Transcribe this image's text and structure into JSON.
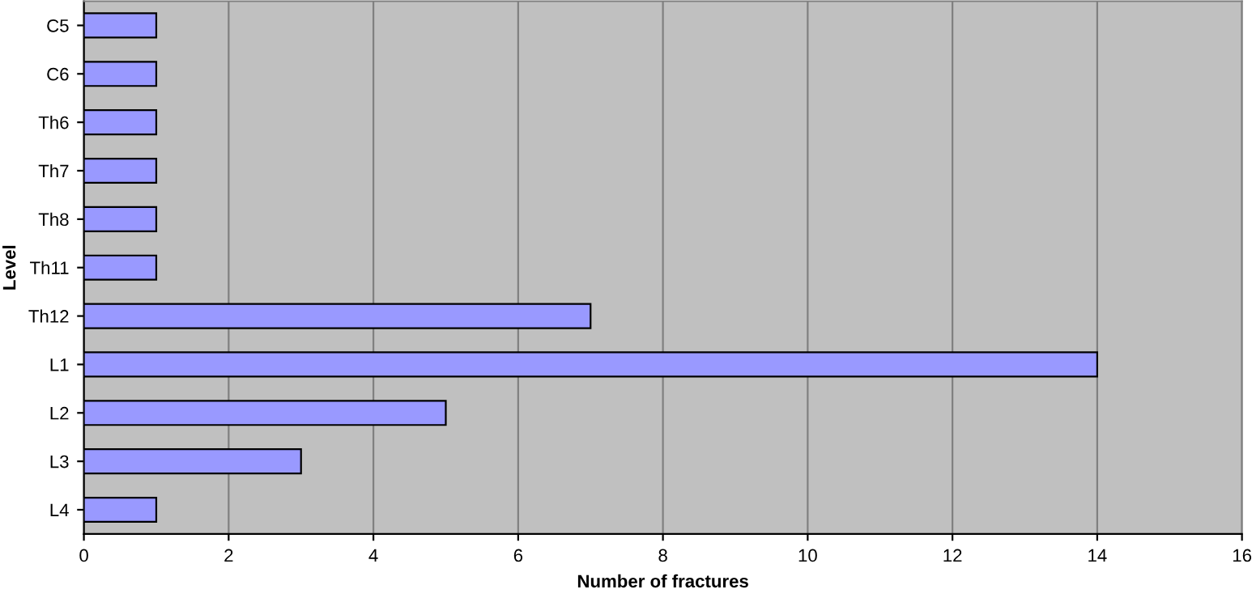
{
  "chart_data": {
    "type": "bar",
    "orientation": "horizontal",
    "xlabel": "Number of fractures",
    "ylabel": "Level",
    "categories": [
      "C5",
      "C6",
      "Th6",
      "Th7",
      "Th8",
      "Th11",
      "Th12",
      "L1",
      "L2",
      "L3",
      "L4"
    ],
    "values": [
      1,
      1,
      1,
      1,
      1,
      1,
      7,
      14,
      5,
      3,
      1
    ],
    "color": "#9999ff",
    "xlim": [
      0,
      16
    ],
    "xticks": [
      0,
      2,
      4,
      6,
      8,
      10,
      12,
      14,
      16
    ],
    "grid": "x"
  }
}
